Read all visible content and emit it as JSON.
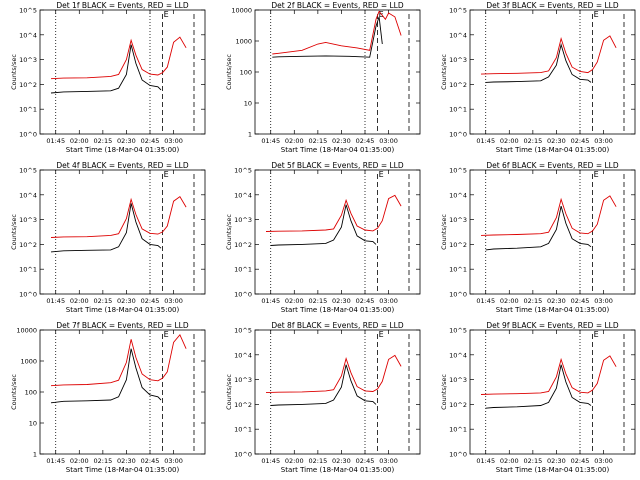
{
  "chart_data": [
    {
      "type": "line",
      "title": "Det 1f BLACK = Events, RED = LLD",
      "xlabel": "Start Time (18-Mar-04 01:35:00)",
      "ylabel": "Counts/sec",
      "x_ticks": [
        "01:45",
        "02:00",
        "02:15",
        "02:30",
        "02:45",
        "03:00"
      ],
      "y_ticks": [
        "10^0",
        "10^1",
        "10^2",
        "10^3",
        "10^4",
        "10^5"
      ],
      "ylim": [
        1,
        100000
      ],
      "log_y": true,
      "marker_text": "E",
      "series": [
        {
          "name": "Events",
          "color": "#000000",
          "x": [
            "01:42",
            "01:50",
            "02:05",
            "02:20",
            "02:25",
            "02:30",
            "02:33",
            "02:36",
            "02:40",
            "02:45",
            "02:50",
            "02:52"
          ],
          "y": [
            45,
            50,
            52,
            55,
            70,
            250,
            4000,
            700,
            150,
            90,
            80,
            60
          ]
        },
        {
          "name": "LLD",
          "color": "#dd0000",
          "x": [
            "01:42",
            "01:50",
            "02:05",
            "02:20",
            "02:25",
            "02:30",
            "02:33",
            "02:36",
            "02:40",
            "02:45",
            "02:50",
            "02:53",
            "02:56",
            "03:00",
            "03:04",
            "03:08"
          ],
          "y": [
            170,
            180,
            185,
            210,
            250,
            1000,
            6000,
            1500,
            400,
            260,
            240,
            300,
            500,
            5000,
            8000,
            3000
          ]
        }
      ]
    },
    {
      "type": "line",
      "title": "Det 2f BLACK = Events, RED = LLD",
      "xlabel": "Start Time (18-Mar-04 01:35:00)",
      "ylabel": "Counts/sec",
      "x_ticks": [
        "01:45",
        "02:00",
        "02:15",
        "02:30",
        "02:45",
        "03:00"
      ],
      "y_ticks": [
        "1",
        "10",
        "100",
        "1000",
        "10000"
      ],
      "ylim": [
        1,
        10000
      ],
      "log_y": true,
      "marker_text": "E",
      "series": [
        {
          "name": "Events",
          "color": "#000000",
          "x": [
            "01:46",
            "01:50",
            "02:05",
            "02:20",
            "02:35",
            "02:48",
            "02:52",
            "02:54",
            "02:56"
          ],
          "y": [
            300,
            310,
            320,
            330,
            320,
            300,
            3000,
            6000,
            800
          ]
        },
        {
          "name": "LLD",
          "color": "#dd0000",
          "x": [
            "01:46",
            "01:50",
            "02:05",
            "02:15",
            "02:20",
            "02:30",
            "02:40",
            "02:48",
            "02:52",
            "02:54",
            "02:58",
            "03:00",
            "03:04",
            "03:08"
          ],
          "y": [
            380,
            400,
            500,
            800,
            900,
            700,
            600,
            500,
            5000,
            9000,
            5000,
            8000,
            6000,
            1500
          ]
        }
      ]
    },
    {
      "type": "line",
      "title": "Det 3f BLACK = Events, RED = LLD",
      "xlabel": "Start Time (18-Mar-04 01:35:00)",
      "ylabel": "Counts/sec",
      "x_ticks": [
        "01:45",
        "02:00",
        "02:15",
        "02:30",
        "02:45",
        "03:00"
      ],
      "y_ticks": [
        "10^0",
        "10^1",
        "10^2",
        "10^3",
        "10^4",
        "10^5"
      ],
      "ylim": [
        1,
        100000
      ],
      "log_y": true,
      "marker_text": "E",
      "series": [
        {
          "name": "Events",
          "color": "#000000",
          "x": [
            "01:45",
            "01:50",
            "02:05",
            "02:20",
            "02:25",
            "02:30",
            "02:33",
            "02:36",
            "02:40",
            "02:45",
            "02:50",
            "02:52"
          ],
          "y": [
            120,
            125,
            130,
            140,
            200,
            600,
            4000,
            900,
            250,
            160,
            150,
            120
          ]
        },
        {
          "name": "LLD",
          "color": "#dd0000",
          "x": [
            "01:42",
            "01:50",
            "02:05",
            "02:20",
            "02:25",
            "02:30",
            "02:33",
            "02:36",
            "02:40",
            "02:45",
            "02:50",
            "02:53",
            "02:56",
            "03:00",
            "03:04",
            "03:08"
          ],
          "y": [
            260,
            270,
            280,
            300,
            350,
            1200,
            7000,
            1800,
            500,
            330,
            300,
            400,
            800,
            6000,
            9000,
            3000
          ]
        }
      ]
    },
    {
      "type": "line",
      "title": "Det 4f BLACK = Events, RED = LLD",
      "xlabel": "Start Time (18-Mar-04 01:35:00)",
      "ylabel": "Counts/sec",
      "x_ticks": [
        "01:45",
        "02:00",
        "02:15",
        "02:30",
        "02:45",
        "03:00"
      ],
      "y_ticks": [
        "10^0",
        "10^1",
        "10^2",
        "10^3",
        "10^4",
        "10^5"
      ],
      "ylim": [
        1,
        100000
      ],
      "log_y": true,
      "marker_text": "E",
      "series": [
        {
          "name": "Events",
          "color": "#000000",
          "x": [
            "01:42",
            "01:50",
            "02:05",
            "02:20",
            "02:25",
            "02:30",
            "02:33",
            "02:36",
            "02:40",
            "02:45",
            "02:50",
            "02:52"
          ],
          "y": [
            50,
            55,
            58,
            60,
            80,
            300,
            4500,
            800,
            170,
            100,
            90,
            70
          ]
        },
        {
          "name": "LLD",
          "color": "#dd0000",
          "x": [
            "01:42",
            "01:50",
            "02:05",
            "02:20",
            "02:25",
            "02:30",
            "02:33",
            "02:36",
            "02:40",
            "02:45",
            "02:50",
            "02:53",
            "02:56",
            "03:00",
            "03:04",
            "03:08"
          ],
          "y": [
            190,
            200,
            205,
            230,
            270,
            1100,
            6500,
            1600,
            420,
            280,
            260,
            320,
            550,
            5500,
            8500,
            3200
          ]
        }
      ]
    },
    {
      "type": "line",
      "title": "Det 5f BLACK = Events, RED = LLD",
      "xlabel": "Start Time (18-Mar-04 01:35:00)",
      "ylabel": "Counts/sec",
      "x_ticks": [
        "01:45",
        "02:00",
        "02:15",
        "02:30",
        "02:45",
        "03:00"
      ],
      "y_ticks": [
        "10^0",
        "10^1",
        "10^2",
        "10^3",
        "10^4",
        "10^5"
      ],
      "ylim": [
        1,
        100000
      ],
      "log_y": true,
      "marker_text": "E",
      "series": [
        {
          "name": "Events",
          "color": "#000000",
          "x": [
            "01:45",
            "01:50",
            "02:05",
            "02:20",
            "02:25",
            "02:30",
            "02:33",
            "02:36",
            "02:40",
            "02:45",
            "02:50",
            "02:52"
          ],
          "y": [
            90,
            95,
            100,
            110,
            150,
            500,
            4000,
            900,
            220,
            140,
            130,
            100
          ]
        },
        {
          "name": "LLD",
          "color": "#dd0000",
          "x": [
            "01:42",
            "01:50",
            "02:05",
            "02:20",
            "02:25",
            "02:30",
            "02:33",
            "02:36",
            "02:40",
            "02:45",
            "02:50",
            "02:53",
            "02:56",
            "03:00",
            "03:04",
            "03:08"
          ],
          "y": [
            330,
            340,
            350,
            380,
            420,
            1500,
            6000,
            1800,
            550,
            380,
            350,
            450,
            900,
            7000,
            9500,
            3500
          ]
        }
      ]
    },
    {
      "type": "line",
      "title": "Det 6f BLACK = Events, RED = LLD",
      "xlabel": "Start Time (18-Mar-04 01:35:00)",
      "ylabel": "Counts/sec",
      "x_ticks": [
        "01:45",
        "02:00",
        "02:15",
        "02:30",
        "02:45",
        "03:00"
      ],
      "y_ticks": [
        "10^0",
        "10^1",
        "10^2",
        "10^3",
        "10^4",
        "10^5"
      ],
      "ylim": [
        1,
        100000
      ],
      "log_y": true,
      "marker_text": "E",
      "series": [
        {
          "name": "Events",
          "color": "#000000",
          "x": [
            "01:45",
            "01:50",
            "02:05",
            "02:20",
            "02:25",
            "02:30",
            "02:33",
            "02:36",
            "02:40",
            "02:45",
            "02:50",
            "02:52"
          ],
          "y": [
            60,
            65,
            70,
            80,
            110,
            400,
            3500,
            700,
            170,
            110,
            100,
            80
          ]
        },
        {
          "name": "LLD",
          "color": "#dd0000",
          "x": [
            "01:42",
            "01:50",
            "02:05",
            "02:20",
            "02:25",
            "02:30",
            "02:33",
            "02:36",
            "02:40",
            "02:45",
            "02:50",
            "02:53",
            "02:56",
            "03:00",
            "03:04",
            "03:08"
          ],
          "y": [
            230,
            240,
            250,
            270,
            310,
            1200,
            6500,
            1700,
            450,
            290,
            270,
            350,
            650,
            6000,
            9000,
            3300
          ]
        }
      ]
    },
    {
      "type": "line",
      "title": "Det 7f BLACK = Events, RED = LLD",
      "xlabel": "Start Time (18-Mar-04 01:35:00)",
      "ylabel": "Counts/sec",
      "x_ticks": [
        "01:45",
        "02:00",
        "02:15",
        "02:30",
        "02:45",
        "03:00"
      ],
      "y_ticks": [
        "1",
        "10",
        "100",
        "1000",
        "10000"
      ],
      "ylim": [
        1,
        10000
      ],
      "log_y": true,
      "marker_text": "E",
      "series": [
        {
          "name": "Events",
          "color": "#000000",
          "x": [
            "01:42",
            "01:50",
            "02:05",
            "02:20",
            "02:25",
            "02:30",
            "02:33",
            "02:36",
            "02:40",
            "02:45",
            "02:50",
            "02:52"
          ],
          "y": [
            45,
            50,
            52,
            55,
            70,
            250,
            2500,
            600,
            140,
            80,
            70,
            55
          ]
        },
        {
          "name": "LLD",
          "color": "#dd0000",
          "x": [
            "01:42",
            "01:50",
            "02:05",
            "02:20",
            "02:25",
            "02:30",
            "02:33",
            "02:36",
            "02:40",
            "02:45",
            "02:50",
            "02:53",
            "02:56",
            "03:00",
            "03:04",
            "03:08"
          ],
          "y": [
            160,
            170,
            175,
            200,
            240,
            900,
            5000,
            1300,
            380,
            250,
            230,
            280,
            450,
            4000,
            7000,
            2500
          ]
        }
      ]
    },
    {
      "type": "line",
      "title": "Det 8f BLACK = Events, RED = LLD",
      "xlabel": "Start Time (18-Mar-04 01:35:00)",
      "ylabel": "Counts/sec",
      "x_ticks": [
        "01:45",
        "02:00",
        "02:15",
        "02:30",
        "02:45",
        "03:00"
      ],
      "y_ticks": [
        "10^0",
        "10^1",
        "10^2",
        "10^3",
        "10^4",
        "10^5"
      ],
      "ylim": [
        1,
        100000
      ],
      "log_y": true,
      "marker_text": "E",
      "series": [
        {
          "name": "Events",
          "color": "#000000",
          "x": [
            "01:45",
            "01:50",
            "02:05",
            "02:20",
            "02:25",
            "02:30",
            "02:33",
            "02:36",
            "02:40",
            "02:45",
            "02:50",
            "02:52"
          ],
          "y": [
            90,
            95,
            100,
            110,
            150,
            500,
            4000,
            900,
            220,
            140,
            130,
            100
          ]
        },
        {
          "name": "LLD",
          "color": "#dd0000",
          "x": [
            "01:42",
            "01:50",
            "02:05",
            "02:20",
            "02:25",
            "02:30",
            "02:33",
            "02:36",
            "02:40",
            "02:45",
            "02:50",
            "02:53",
            "02:56",
            "03:00",
            "03:04",
            "03:08"
          ],
          "y": [
            300,
            310,
            320,
            350,
            390,
            1400,
            7000,
            1900,
            520,
            350,
            330,
            420,
            850,
            6500,
            9500,
            3400
          ]
        }
      ]
    },
    {
      "type": "line",
      "title": "Det 9f BLACK = Events, RED = LLD",
      "xlabel": "Start Time (18-Mar-04 01:35:00)",
      "ylabel": "Counts/sec",
      "x_ticks": [
        "01:45",
        "02:00",
        "02:15",
        "02:30",
        "02:45",
        "03:00"
      ],
      "y_ticks": [
        "10^0",
        "10^1",
        "10^2",
        "10^3",
        "10^4",
        "10^5"
      ],
      "ylim": [
        1,
        100000
      ],
      "log_y": true,
      "marker_text": "E",
      "series": [
        {
          "name": "Events",
          "color": "#000000",
          "x": [
            "01:45",
            "01:50",
            "02:05",
            "02:20",
            "02:25",
            "02:30",
            "02:33",
            "02:36",
            "02:40",
            "02:45",
            "02:50",
            "02:52"
          ],
          "y": [
            70,
            75,
            80,
            90,
            120,
            450,
            4000,
            800,
            190,
            120,
            110,
            90
          ]
        },
        {
          "name": "LLD",
          "color": "#dd0000",
          "x": [
            "01:42",
            "01:50",
            "02:05",
            "02:20",
            "02:25",
            "02:30",
            "02:33",
            "02:36",
            "02:40",
            "02:45",
            "02:50",
            "02:53",
            "02:56",
            "03:00",
            "03:04",
            "03:08"
          ],
          "y": [
            250,
            260,
            270,
            290,
            330,
            1300,
            6500,
            1700,
            470,
            310,
            290,
            380,
            700,
            6000,
            9000,
            3300
          ]
        }
      ]
    }
  ]
}
